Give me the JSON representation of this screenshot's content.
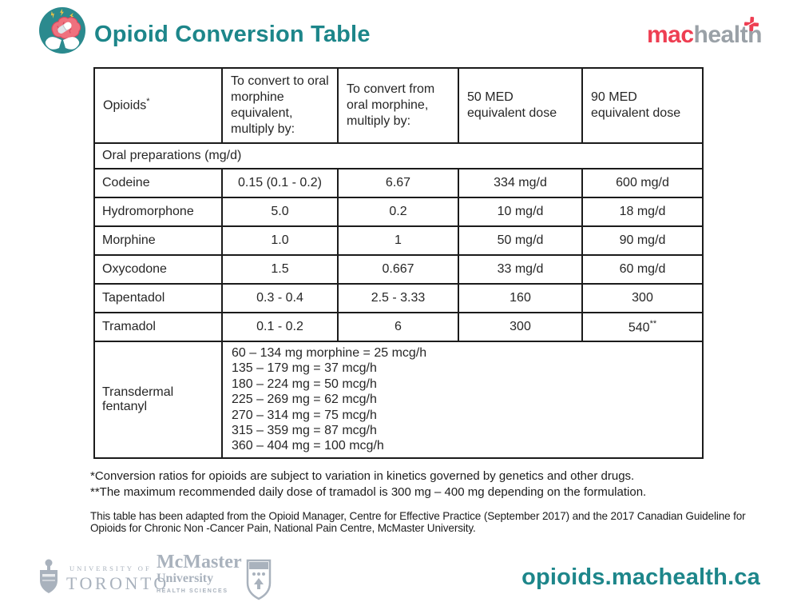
{
  "colors": {
    "teal": "#1d868a",
    "brand_red": "#ee3e52",
    "brand_gray": "#9aa1a7",
    "logo_gray": "#a9b2bd",
    "icon_teal": "#2b8a8e",
    "icon_pink": "#ef717e",
    "icon_pink_dark": "#d44a5e",
    "icon_yellow": "#f5c543"
  },
  "header": {
    "title": "Opioid Conversion Table",
    "brand": {
      "mac": "mac",
      "health": "health"
    }
  },
  "table": {
    "columns": [
      {
        "text": "Opioids",
        "sup": "*"
      },
      {
        "text": "To convert to oral morphine equivalent, multiply by:"
      },
      {
        "text": "To convert from oral morphine, multiply by:"
      },
      {
        "text": "50 MED equivalent dose"
      },
      {
        "text": "90 MED equivalent dose"
      }
    ],
    "section_row": "Oral preparations (mg/d)",
    "rows": [
      {
        "drug": "Codeine",
        "to_oral_morphine": "0.15 (0.1 - 0.2)",
        "from_oral_morphine": "6.67",
        "med50": "334 mg/d",
        "med90": "600 mg/d"
      },
      {
        "drug": "Hydromorphone",
        "to_oral_morphine": "5.0",
        "from_oral_morphine": "0.2",
        "med50": "10 mg/d",
        "med90": "18 mg/d"
      },
      {
        "drug": "Morphine",
        "to_oral_morphine": "1.0",
        "from_oral_morphine": "1",
        "med50": "50 mg/d",
        "med90": "90 mg/d"
      },
      {
        "drug": "Oxycodone",
        "to_oral_morphine": "1.5",
        "from_oral_morphine": "0.667",
        "med50": "33 mg/d",
        "med90": "60 mg/d"
      },
      {
        "drug": "Tapentadol",
        "to_oral_morphine": "0.3 - 0.4",
        "from_oral_morphine": "2.5 - 3.33",
        "med50": "160",
        "med90": "300"
      },
      {
        "drug": "Tramadol",
        "to_oral_morphine": "0.1 - 0.2",
        "from_oral_morphine": "6",
        "med50": "300",
        "med90": "540",
        "med90_sup": "**"
      }
    ],
    "fentanyl_row": {
      "drug": "Transdermal fentanyl",
      "lines": [
        "60 – 134 mg morphine = 25 mcg/h",
        "135 – 179 mg = 37 mcg/h",
        "180 – 224 mg = 50 mcg/h",
        "225 – 269 mg = 62 mcg/h",
        "270 – 314 mg = 75 mcg/h",
        "315 – 359 mg = 87 mcg/h",
        "360 – 404 mg = 100 mcg/h"
      ]
    }
  },
  "footnotes": {
    "fn1": "*Conversion ratios for opioids are subject to variation in kinetics governed by genetics and other drugs.",
    "fn2": "**The maximum  recommended daily dose of tramadol is 300 mg  – 400 mg depending on the formulation.",
    "adaptation": "This table has been adapted from the Opioid Manager, Centre for Effective Practice (September 2017) and the 2017 Canadian Guideline for Opioids for Chronic Non -Cancer Pain, National Pain Centre, McMaster University."
  },
  "footer": {
    "uoft_line1": "UNIVERSITY OF",
    "uoft_line2": "TORONTO",
    "mcmaster_name": "McMaster",
    "mcmaster_univ": "University",
    "mcmaster_hs": "HEALTH SCIENCES",
    "url": "opioids.machealth.ca"
  }
}
